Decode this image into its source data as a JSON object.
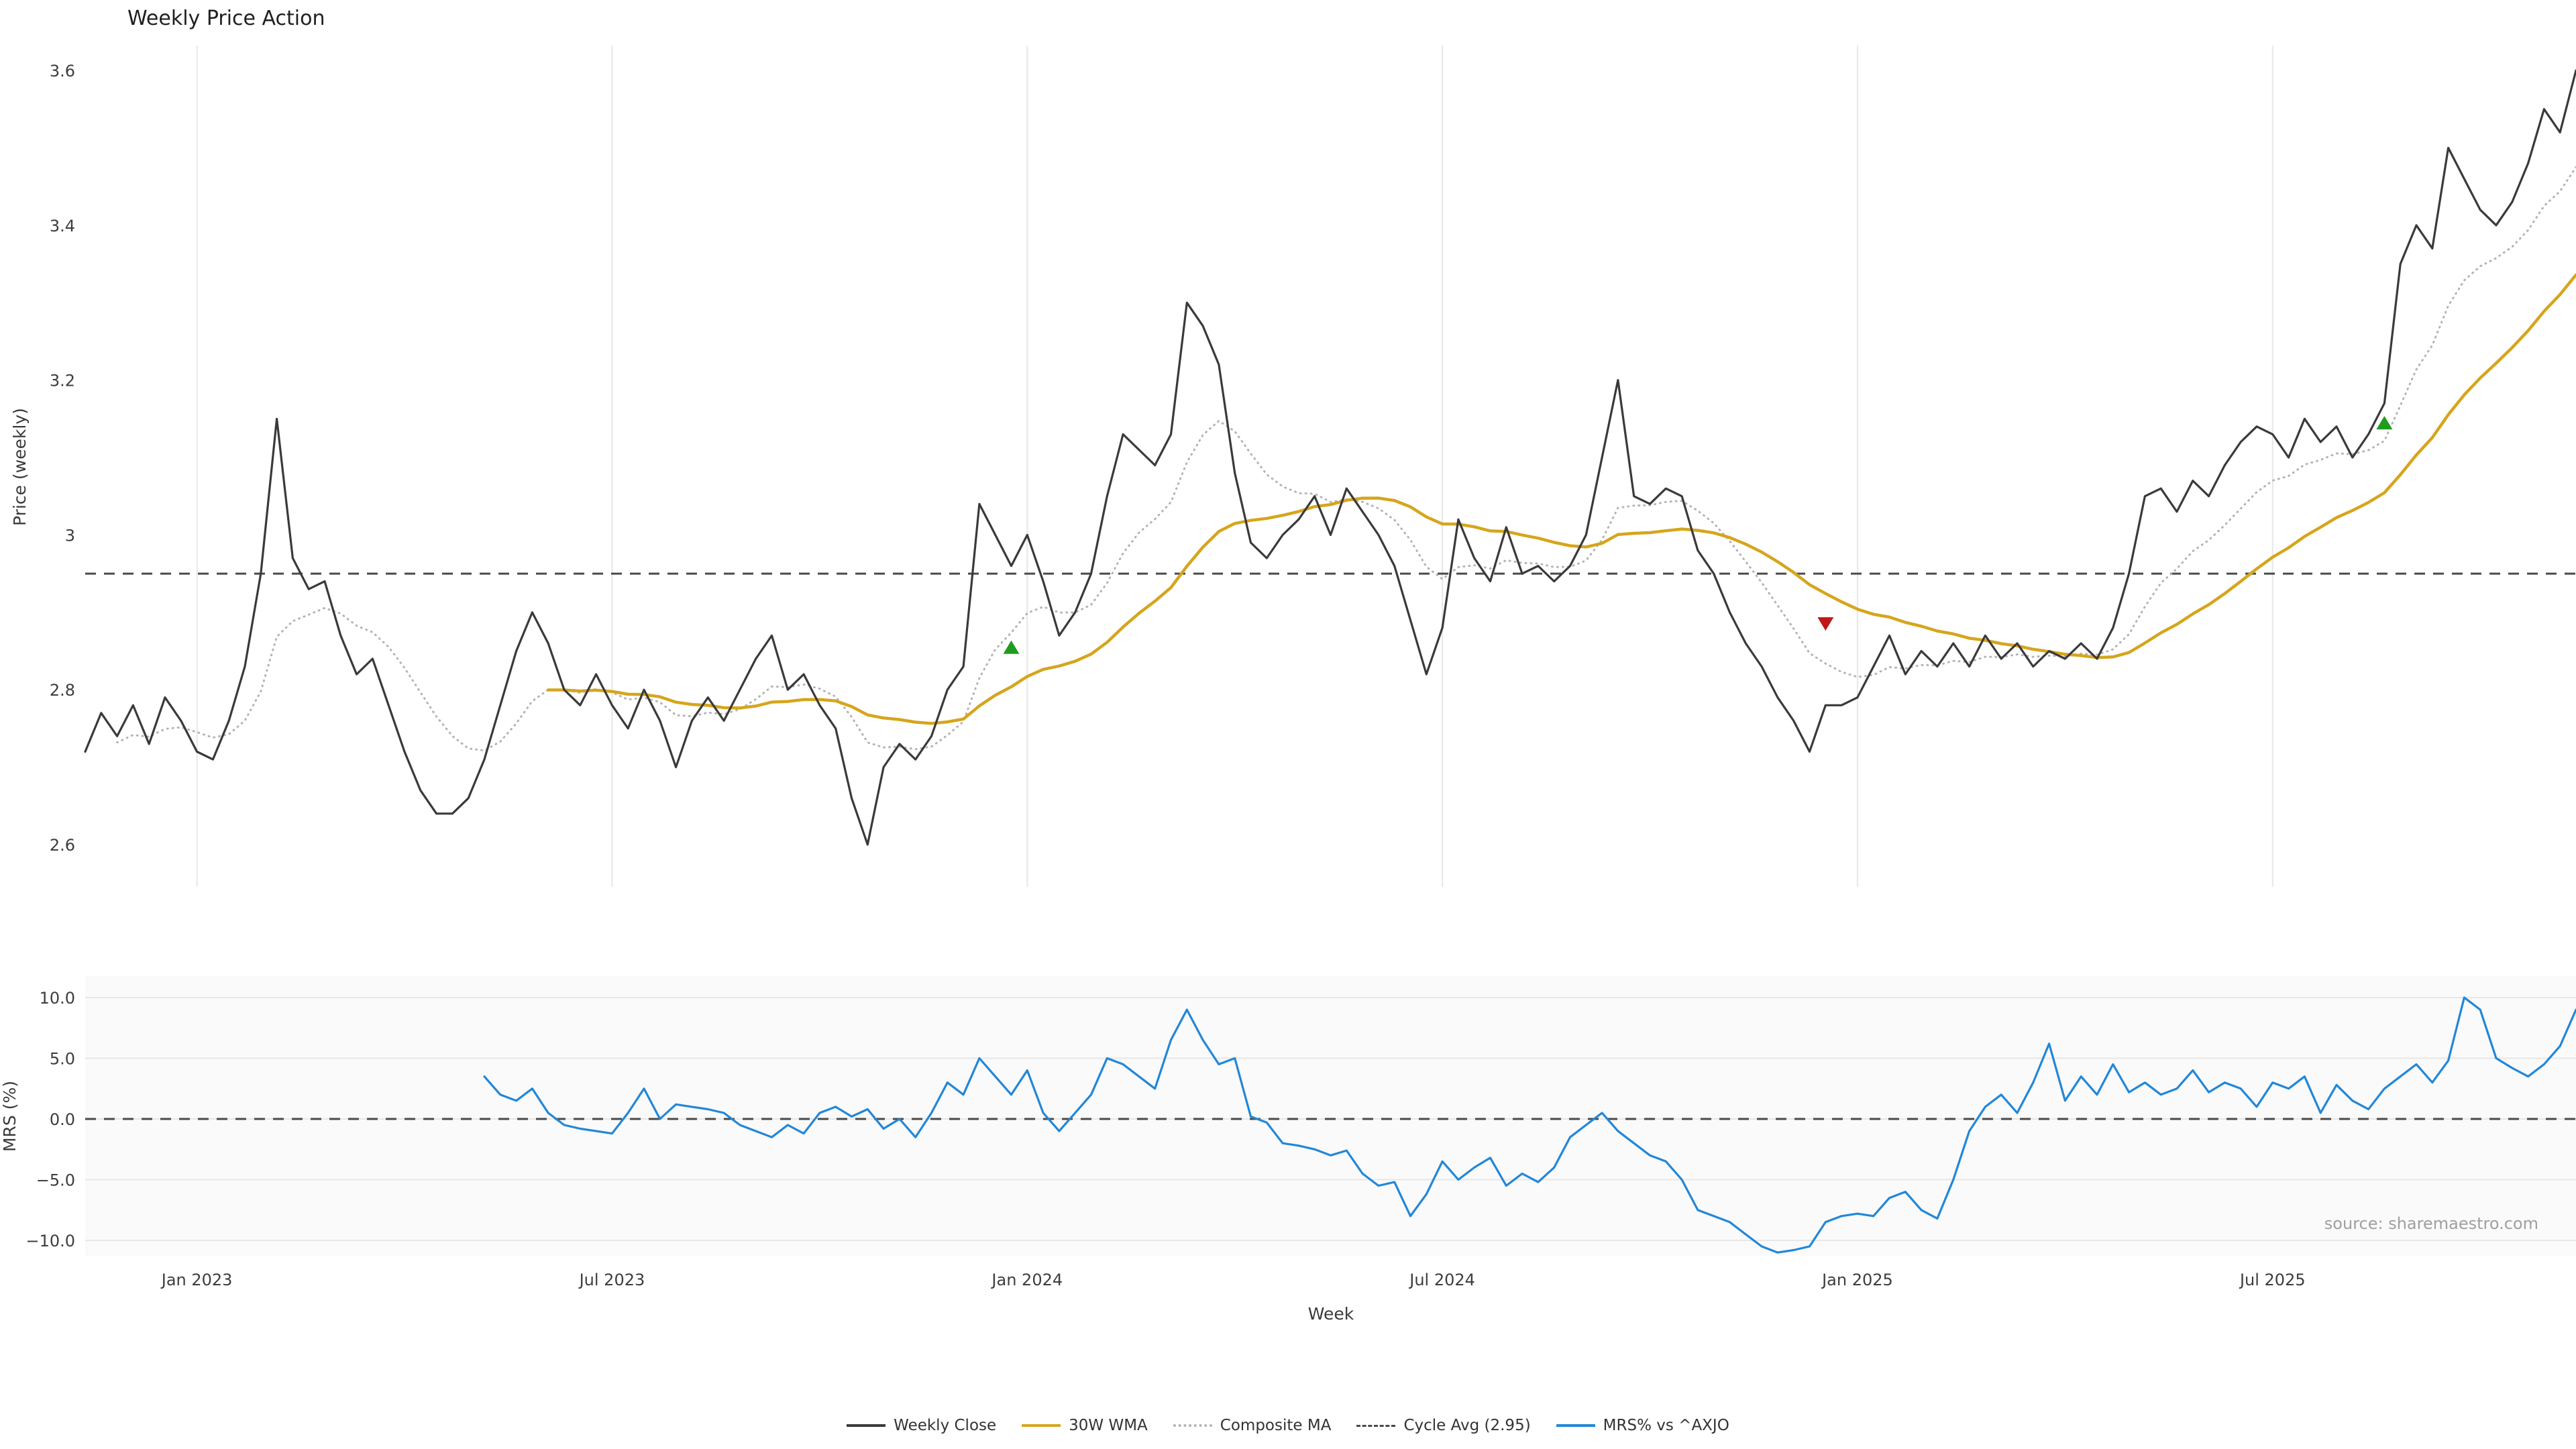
{
  "title": "Weekly Price Action",
  "source_note": "source: sharemaestro.com",
  "colors": {
    "close": "#3a3a3a",
    "wma": "#d6a51c",
    "composite": "#b3b3b3",
    "cycle_avg": "#4a4a4a",
    "mrs": "#2187d8",
    "grid": "#e7e7e7",
    "panel_bg": "#fafafa",
    "buy": "#1e9c1e",
    "sell": "#c01818",
    "tick_text": "#3d3d3d",
    "source_text": "#9f9f9f"
  },
  "legend": [
    {
      "label": "Weekly Close",
      "style": "solid",
      "color_key": "close"
    },
    {
      "label": "30W WMA",
      "style": "solid",
      "color_key": "wma"
    },
    {
      "label": "Composite MA",
      "style": "dotted",
      "color_key": "composite"
    },
    {
      "label": "Cycle Avg (2.95)",
      "style": "dashed",
      "color_key": "cycle_avg"
    },
    {
      "label": "MRS% vs ^AXJO",
      "style": "solid",
      "color_key": "mrs"
    }
  ],
  "chart_data": {
    "type": "line",
    "x": {
      "label": "Week",
      "total_weeks": 157,
      "tick_weeks": [
        7,
        33,
        59,
        85,
        111,
        137
      ],
      "tick_labels": [
        "Jan 2023",
        "Jul 2023",
        "Jan 2024",
        "Jul 2024",
        "Jan 2025",
        "Jul 2025"
      ]
    },
    "panels": [
      {
        "name": "price",
        "ylabel": "Price (weekly)",
        "ylim": [
          2.545,
          3.632
        ],
        "yticks": {
          "values": [
            3.6,
            3.4,
            3.2,
            3.0,
            2.8,
            2.6
          ],
          "labels": [
            "3.6",
            "3.4",
            "3.2",
            "3",
            "2.8",
            "2.6"
          ]
        },
        "reference_lines": [
          {
            "label": "Cycle Avg (2.95)",
            "value": 2.95,
            "style": "dashed"
          }
        ],
        "series": [
          {
            "name": "Weekly Close",
            "start_week": 0,
            "values": [
              2.72,
              2.77,
              2.74,
              2.78,
              2.73,
              2.79,
              2.76,
              2.72,
              2.71,
              2.76,
              2.83,
              2.95,
              3.15,
              2.97,
              2.93,
              2.94,
              2.87,
              2.82,
              2.84,
              2.78,
              2.72,
              2.67,
              2.64,
              2.64,
              2.66,
              2.71,
              2.78,
              2.85,
              2.9,
              2.86,
              2.8,
              2.78,
              2.82,
              2.78,
              2.75,
              2.8,
              2.76,
              2.7,
              2.76,
              2.79,
              2.76,
              2.8,
              2.84,
              2.87,
              2.8,
              2.82,
              2.78,
              2.75,
              2.66,
              2.6,
              2.7,
              2.73,
              2.71,
              2.74,
              2.8,
              2.83,
              3.04,
              3.0,
              2.96,
              3.0,
              2.94,
              2.87,
              2.9,
              2.95,
              3.05,
              3.13,
              3.11,
              3.09,
              3.13,
              3.3,
              3.27,
              3.22,
              3.08,
              2.99,
              2.97,
              3.0,
              3.02,
              3.05,
              3.0,
              3.06,
              3.03,
              3.0,
              2.96,
              2.89,
              2.82,
              2.88,
              3.02,
              2.97,
              2.94,
              3.01,
              2.95,
              2.96,
              2.94,
              2.96,
              3.0,
              3.1,
              3.2,
              3.05,
              3.04,
              3.06,
              3.05,
              2.98,
              2.95,
              2.9,
              2.86,
              2.83,
              2.79,
              2.76,
              2.72,
              2.78,
              2.78,
              2.79,
              2.83,
              2.87,
              2.82,
              2.85,
              2.83,
              2.86,
              2.83,
              2.87,
              2.84,
              2.86,
              2.83,
              2.85,
              2.84,
              2.86,
              2.84,
              2.88,
              2.95,
              3.05,
              3.06,
              3.03,
              3.07,
              3.05,
              3.09,
              3.12,
              3.14,
              3.13,
              3.1,
              3.15,
              3.12,
              3.14,
              3.1,
              3.13,
              3.17,
              3.35,
              3.4,
              3.37,
              3.5,
              3.46,
              3.42,
              3.4,
              3.43,
              3.48,
              3.55,
              3.52,
              3.6
            ]
          }
        ],
        "signals": [
          {
            "type": "buy",
            "week": 58,
            "price": 2.855
          },
          {
            "type": "sell",
            "week": 109,
            "price": 2.885
          },
          {
            "type": "buy",
            "week": 144,
            "price": 3.145
          }
        ]
      },
      {
        "name": "mrs",
        "ylabel": "MRS (%)",
        "ylim": [
          -11.3,
          11.8
        ],
        "yticks": {
          "values": [
            10.0,
            5.0,
            0.0,
            -5.0,
            -10.0
          ],
          "labels": [
            "10.0",
            "5.0",
            "0.0",
            "−5.0",
            "−10.0"
          ]
        },
        "reference_lines": [
          {
            "label": "zero",
            "value": 0,
            "style": "dashed"
          }
        ],
        "series": [
          {
            "name": "MRS% vs ^AXJO",
            "start_week": 25,
            "values": [
              3.5,
              2.0,
              1.5,
              2.5,
              0.5,
              -0.5,
              -0.8,
              -1.0,
              -1.2,
              0.5,
              2.5,
              0.0,
              1.2,
              1.0,
              0.8,
              0.5,
              -0.5,
              -1.0,
              -1.5,
              -0.5,
              -1.2,
              0.5,
              1.0,
              0.2,
              0.8,
              -0.8,
              0.0,
              -1.5,
              0.5,
              3.0,
              2.0,
              5.0,
              3.5,
              2.0,
              4.0,
              0.5,
              -1.0,
              0.5,
              2.0,
              5.0,
              4.5,
              3.5,
              2.5,
              6.5,
              9.0,
              6.5,
              4.5,
              5.0,
              0.2,
              -0.3,
              -2.0,
              -2.2,
              -2.5,
              -3.0,
              -2.6,
              -4.5,
              -5.5,
              -5.2,
              -8.0,
              -6.2,
              -3.5,
              -5.0,
              -4.0,
              -3.2,
              -5.5,
              -4.5,
              -5.2,
              -4.0,
              -1.5,
              -0.5,
              0.5,
              -1.0,
              -2.0,
              -3.0,
              -3.5,
              -5.0,
              -7.5,
              -8.0,
              -8.5,
              -9.5,
              -10.5,
              -11.0,
              -10.8,
              -10.5,
              -8.5,
              -8.0,
              -7.8,
              -8.0,
              -6.5,
              -6.0,
              -7.5,
              -8.2,
              -5.0,
              -1.0,
              1.0,
              2.0,
              0.5,
              3.0,
              6.2,
              1.5,
              3.5,
              2.0,
              4.5,
              2.2,
              3.0,
              2.0,
              2.5,
              4.0,
              2.2,
              3.0,
              2.5,
              1.0,
              3.0,
              2.5,
              3.5,
              0.5,
              2.8,
              1.5,
              0.8,
              2.5,
              3.5,
              4.5,
              3.0,
              4.8,
              10.0,
              9.0,
              5.0,
              4.2,
              3.5,
              4.5,
              6.0,
              9.0
            ]
          }
        ]
      }
    ],
    "derived_series": [
      {
        "name": "30W WMA",
        "from": "Weekly Close",
        "method": "linear_wma",
        "window": 30
      },
      {
        "name": "Composite MA",
        "from": "Weekly Close",
        "method": "ema",
        "alpha": 0.2,
        "draw_from_week": 2
      }
    ]
  }
}
